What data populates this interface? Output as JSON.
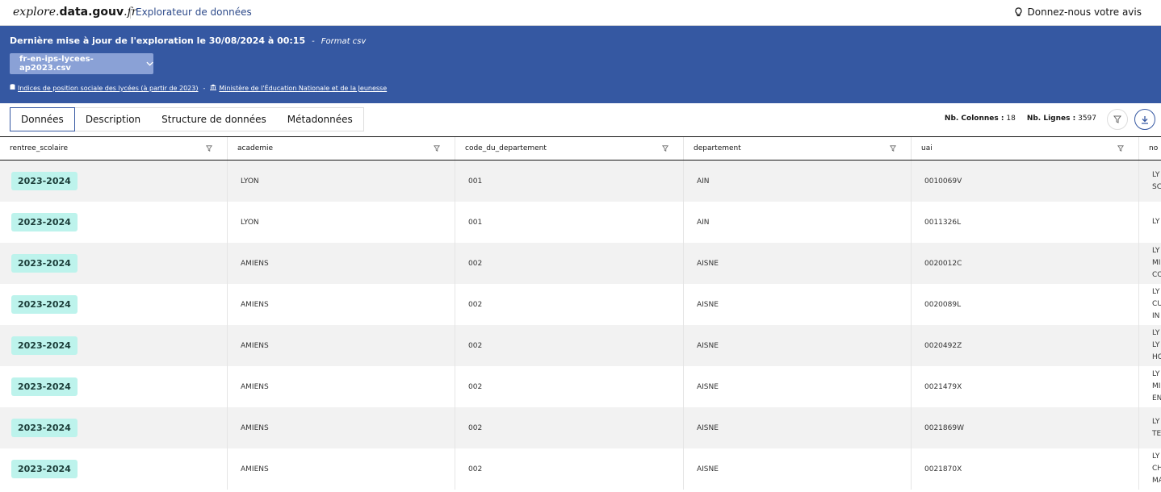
{
  "header": {
    "logo": [
      "explore.",
      "data.gouv",
      ".fr"
    ],
    "subtitle": "Explorateur de données",
    "feedback": "Donnez-nous votre avis"
  },
  "banner": {
    "update": "Dernière mise à jour de l'exploration le 30/08/2024 à 00:15",
    "separator": "-",
    "format": "Format csv",
    "file": "fr-en-ips-lycees-ap2023.csv",
    "dataset_link": "Indices de position sociale des lycées (à partir de 2023)",
    "link_separator": "-",
    "org_link": "Ministère de l'Éducation Nationale et de la Jeunesse"
  },
  "tabs": [
    "Données",
    "Description",
    "Structure de données",
    "Métadonnées"
  ],
  "stats": {
    "columns_label": "Nb. Colonnes :",
    "columns": "18",
    "rows_label": "Nb. Lignes :",
    "rows": "3597"
  },
  "table": {
    "columns": [
      "rentree_scolaire",
      "academie",
      "code_du_departement",
      "departement",
      "uai",
      "no"
    ],
    "rows": [
      [
        "2023-2024",
        "LYON",
        "001",
        "AIN",
        "0010069V",
        [
          "LY",
          "SC"
        ]
      ],
      [
        "2023-2024",
        "LYON",
        "001",
        "AIN",
        "0011326L",
        [
          "LY"
        ]
      ],
      [
        "2023-2024",
        "AMIENS",
        "002",
        "AISNE",
        "0020012C",
        [
          "LY",
          "MI",
          "CO"
        ]
      ],
      [
        "2023-2024",
        "AMIENS",
        "002",
        "AISNE",
        "0020089L",
        [
          "LY",
          "CU",
          "IN"
        ]
      ],
      [
        "2023-2024",
        "AMIENS",
        "002",
        "AISNE",
        "0020492Z",
        [
          "LY",
          "LY",
          "HO"
        ]
      ],
      [
        "2023-2024",
        "AMIENS",
        "002",
        "AISNE",
        "0021479X",
        [
          "LY",
          "MI",
          "EN"
        ]
      ],
      [
        "2023-2024",
        "AMIENS",
        "002",
        "AISNE",
        "0021869W",
        [
          "LY",
          "TE"
        ]
      ],
      [
        "2023-2024",
        "AMIENS",
        "002",
        "AISNE",
        "0021870X",
        [
          "LY",
          "CH",
          "MA"
        ]
      ]
    ]
  }
}
